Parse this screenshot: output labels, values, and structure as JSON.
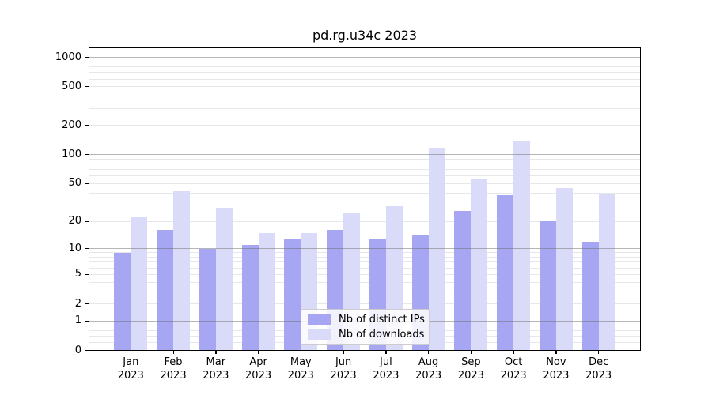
{
  "chart_data": {
    "type": "bar",
    "title": "pd.rg.u34c 2023",
    "year_label": "2023",
    "categories": [
      "Jan",
      "Feb",
      "Mar",
      "Apr",
      "May",
      "Jun",
      "Jul",
      "Aug",
      "Sep",
      "Oct",
      "Nov",
      "Dec"
    ],
    "series": [
      {
        "name": "Nb of distinct IPs",
        "color": "#a6a6f2",
        "values": [
          9,
          16,
          10,
          11,
          13,
          16,
          13,
          14,
          26,
          38,
          20,
          12
        ]
      },
      {
        "name": "Nb of downloads",
        "color": "#dadaf9",
        "values": [
          22,
          42,
          28,
          15,
          15,
          25,
          29,
          117,
          57,
          140,
          45,
          39
        ]
      }
    ],
    "yscale": "log1p",
    "y_ticks": [
      0,
      1,
      2,
      5,
      10,
      20,
      50,
      100,
      200,
      500,
      1000
    ],
    "ylim": [
      0,
      1300
    ],
    "xlabel": "",
    "ylabel": "",
    "grid": true,
    "legend_position": "lower-center",
    "colors": {
      "background": "#ffffff",
      "spine": "#000000",
      "text": "#000000",
      "major_grid": "#b3b3b3",
      "minor_grid": "#e7e7ea"
    }
  }
}
